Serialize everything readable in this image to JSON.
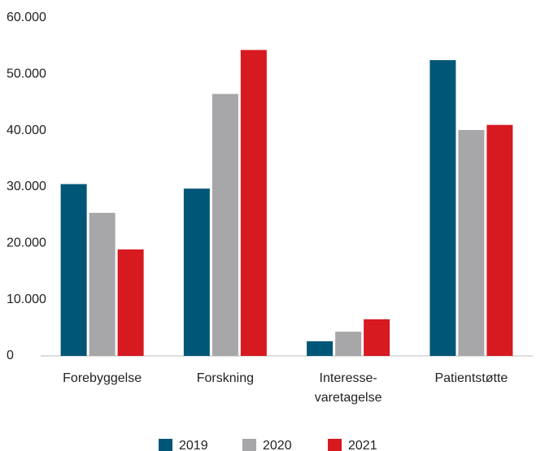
{
  "chart_data": {
    "type": "bar",
    "categories": [
      "Forebyggelse",
      "Forskning",
      "Interesse-\nvaretagelse",
      "Patientstøtte"
    ],
    "series": [
      {
        "name": "2019",
        "color": "#005677",
        "values": [
          30500,
          29700,
          2600,
          52500
        ]
      },
      {
        "name": "2020",
        "color": "#a7a7a9",
        "values": [
          25400,
          46500,
          4300,
          40100
        ]
      },
      {
        "name": "2021",
        "color": "#d71920",
        "values": [
          18900,
          54300,
          6500,
          41000
        ]
      }
    ],
    "ylim": [
      0,
      60000
    ],
    "yticks": [
      0,
      {
        "value": 10000,
        "label": "10.000"
      },
      {
        "value": 20000,
        "label": "20.000"
      },
      {
        "value": 30000,
        "label": "30.000"
      },
      {
        "value": 40000,
        "label": "40.000"
      },
      {
        "value": 50000,
        "label": "50.000"
      },
      {
        "value": 60000,
        "label": "60.000"
      }
    ],
    "grid": false,
    "legend": "bottom"
  }
}
